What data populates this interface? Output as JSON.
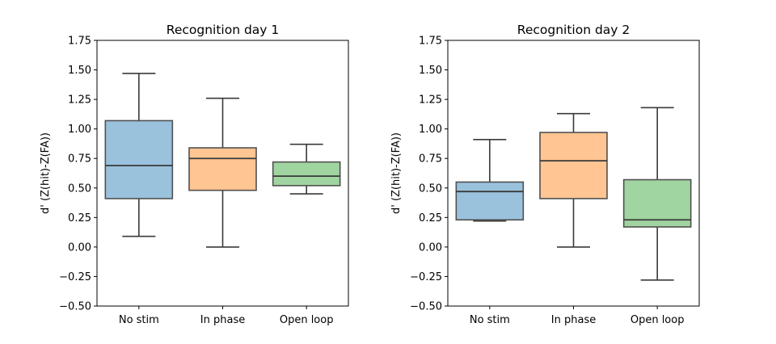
{
  "colors": {
    "box_fills": [
      "#1f77b4",
      "#ff7f0e",
      "#2ca02c"
    ],
    "box_fill_opacity": 0.45,
    "box_edge": "#505050",
    "whisker": "#3a3a3a",
    "median": "#3a3a3a"
  },
  "chart_data": [
    {
      "type": "box",
      "title": "Recognition day 1",
      "xlabel": "",
      "ylabel": "d' (Z(hit)-Z(FA))",
      "ylim": [
        -0.5,
        1.75
      ],
      "yticks": [
        "−0.50",
        "−0.25",
        "0.00",
        "0.25",
        "0.50",
        "0.75",
        "1.00",
        "1.25",
        "1.50",
        "1.75"
      ],
      "ytick_values": [
        -0.5,
        -0.25,
        0.0,
        0.25,
        0.5,
        0.75,
        1.0,
        1.25,
        1.5,
        1.75
      ],
      "categories": [
        "No stim",
        "In phase",
        "Open loop"
      ],
      "boxes": [
        {
          "whislo": 0.09,
          "q1": 0.41,
          "med": 0.69,
          "q3": 1.07,
          "whishi": 1.47
        },
        {
          "whislo": 0.0,
          "q1": 0.48,
          "med": 0.75,
          "q3": 0.84,
          "whishi": 1.26
        },
        {
          "whislo": 0.45,
          "q1": 0.52,
          "med": 0.6,
          "q3": 0.72,
          "whishi": 0.87
        }
      ],
      "grid": false
    },
    {
      "type": "box",
      "title": "Recognition day 2",
      "xlabel": "",
      "ylabel": "d' (Z(hit)-Z(FA))",
      "ylim": [
        -0.5,
        1.75
      ],
      "yticks": [
        "−0.50",
        "−0.25",
        "0.00",
        "0.25",
        "0.50",
        "0.75",
        "1.00",
        "1.25",
        "1.50",
        "1.75"
      ],
      "ytick_values": [
        -0.5,
        -0.25,
        0.0,
        0.25,
        0.5,
        0.75,
        1.0,
        1.25,
        1.5,
        1.75
      ],
      "categories": [
        "No stim",
        "In phase",
        "Open loop"
      ],
      "boxes": [
        {
          "whislo": 0.22,
          "q1": 0.23,
          "med": 0.47,
          "q3": 0.55,
          "whishi": 0.91
        },
        {
          "whislo": 0.0,
          "q1": 0.41,
          "med": 0.73,
          "q3": 0.97,
          "whishi": 1.13
        },
        {
          "whislo": -0.28,
          "q1": 0.17,
          "med": 0.23,
          "q3": 0.57,
          "whishi": 1.18
        }
      ],
      "grid": false
    }
  ]
}
